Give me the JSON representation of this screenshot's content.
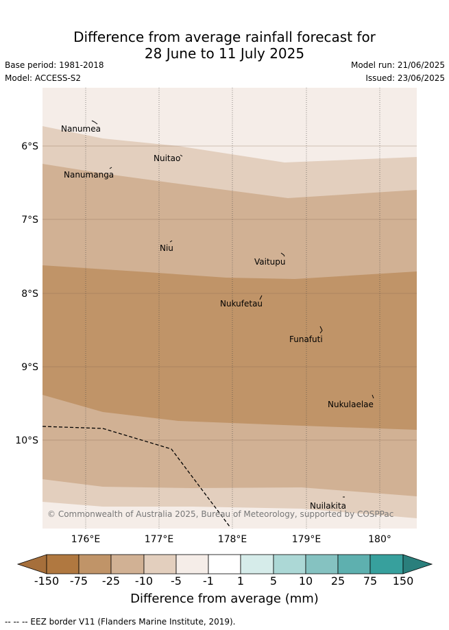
{
  "title_line1": "Difference from average rainfall forecast for",
  "title_line2": "28 June to 11 July 2025",
  "base_period": "Base period: 1981-2018",
  "model": "Model: ACCESS-S2",
  "model_run": "Model run: 21/06/2025",
  "issued": "Issued: 23/06/2025",
  "copyright": "© Commonwealth of Australia 2025, Bureau of Meteorology, supported by COSPPac",
  "lat_labels": [
    "6°S",
    "7°S",
    "8°S",
    "9°S",
    "10°S"
  ],
  "lon_labels": [
    "176°E",
    "177°E",
    "178°E",
    "179°E",
    "180°"
  ],
  "places": [
    "Nanumea",
    "Nuitao",
    "Nanumanga",
    "Niu",
    "Vaitupu",
    "Nukufetau",
    "Funafuti",
    "Nukulaelae",
    "Nuilakita"
  ],
  "colorbar": {
    "tick_labels": [
      "-150",
      "-75",
      "-25",
      "-10",
      "-5",
      "-1",
      "1",
      "5",
      "10",
      "25",
      "75",
      "150"
    ],
    "colors": [
      "#a66f3b",
      "#b07840",
      "#c09468",
      "#d1b194",
      "#e3cfbe",
      "#f5ede8",
      "#ffffff",
      "#d6ecea",
      "#acd8d6",
      "#85c2c1",
      "#5eb0af",
      "#37a09d",
      "#2a7f7c"
    ],
    "label": "Difference from average (mm)"
  },
  "footnote": "-- -- -- EEZ border V11 (Flanders Marine Institute, 2019)."
}
